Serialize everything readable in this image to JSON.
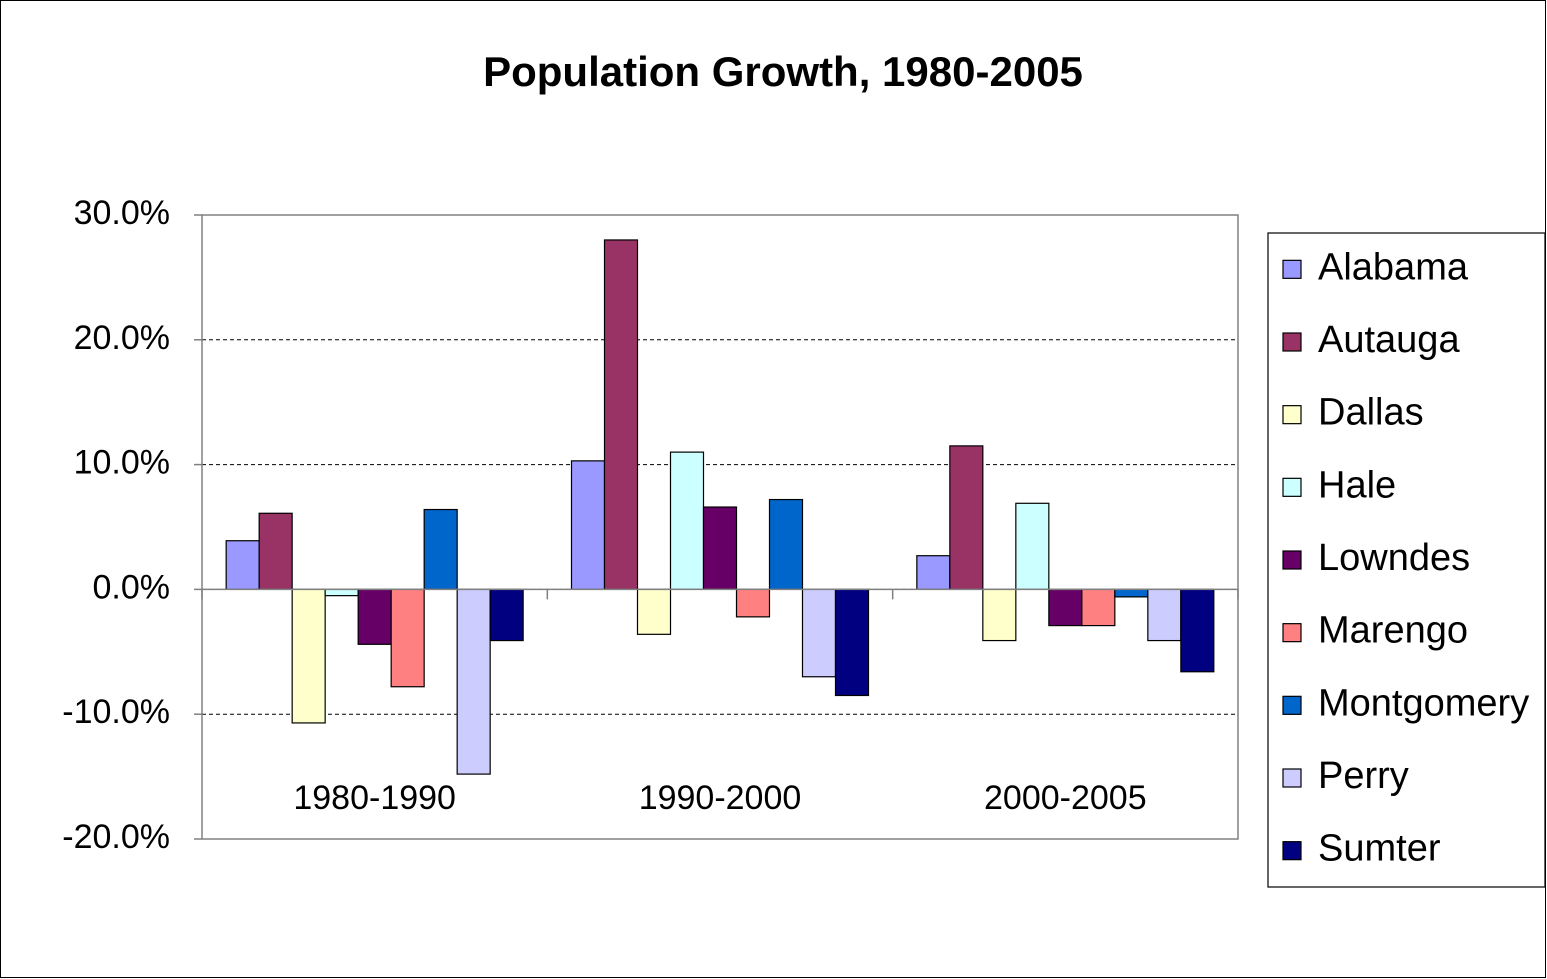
{
  "chart_data": {
    "type": "bar",
    "title": "Population Growth, 1980-2005",
    "categories": [
      "1980-1990",
      "1990-2000",
      "2000-2005"
    ],
    "series": [
      {
        "name": "Alabama",
        "color": "#9999ff",
        "values": [
          3.9,
          10.3,
          2.7
        ]
      },
      {
        "name": "Autauga",
        "color": "#993366",
        "values": [
          6.1,
          28.0,
          11.5
        ]
      },
      {
        "name": "Dallas",
        "color": "#ffffcc",
        "values": [
          -10.7,
          -3.6,
          -4.1
        ]
      },
      {
        "name": "Hale",
        "color": "#ccffff",
        "values": [
          -0.5,
          11.0,
          6.9
        ]
      },
      {
        "name": "Lowndes",
        "color": "#660066",
        "values": [
          -4.4,
          6.6,
          -2.9
        ]
      },
      {
        "name": "Marengo",
        "color": "#ff8080",
        "values": [
          -7.8,
          -2.2,
          -2.9
        ]
      },
      {
        "name": "Montgomery",
        "color": "#0066cc",
        "values": [
          6.4,
          7.2,
          -0.6
        ]
      },
      {
        "name": "Perry",
        "color": "#ccccff",
        "values": [
          -14.8,
          -7.0,
          -4.1
        ]
      },
      {
        "name": "Sumter",
        "color": "#000080",
        "values": [
          -4.1,
          -8.5,
          -6.6
        ]
      }
    ],
    "ylim": [
      -20,
      30
    ],
    "yticks": [
      {
        "value": -20,
        "label": "-20.0%"
      },
      {
        "value": -10,
        "label": "-10.0%"
      },
      {
        "value": 0,
        "label": "0.0%"
      },
      {
        "value": 10,
        "label": "10.0%"
      },
      {
        "value": 20,
        "label": "20.0%"
      },
      {
        "value": 30,
        "label": "30.0%"
      }
    ],
    "grid": true,
    "legend": "right"
  }
}
